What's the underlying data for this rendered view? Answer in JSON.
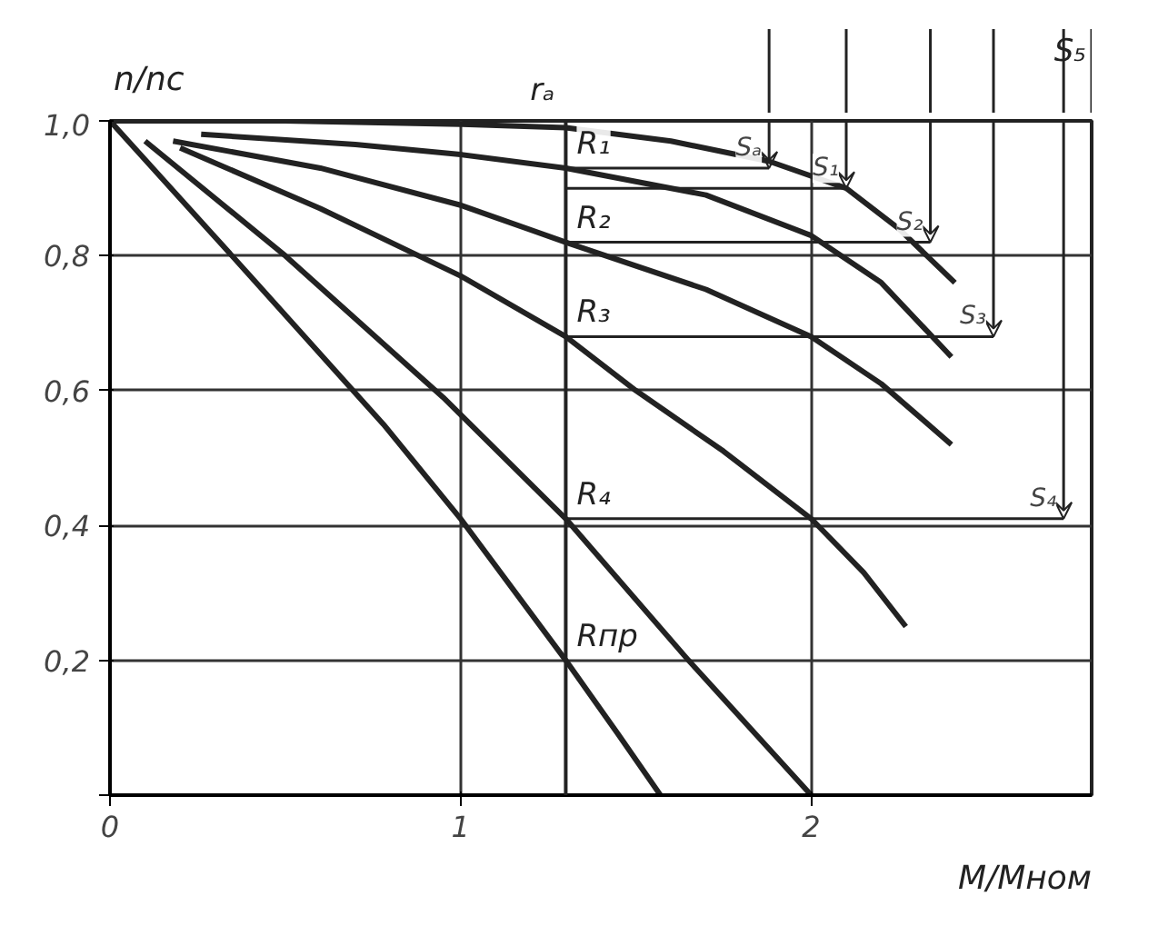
{
  "chart_data": {
    "type": "line",
    "xlabel": "M/Mном",
    "ylabel": "n/nc",
    "xlim": [
      0,
      2.8
    ],
    "ylim": [
      0,
      1.0
    ],
    "xticks": [
      {
        "value": 0,
        "label": "0"
      },
      1,
      2
    ],
    "yticks": [
      {
        "value": 0,
        "label": null
      },
      {
        "value": 0.2,
        "label": "0,2"
      },
      {
        "value": 0.4,
        "label": "0,4"
      },
      {
        "value": 0.6,
        "label": "0,6"
      },
      {
        "value": 0.8,
        "label": "0,8"
      },
      {
        "value": 1.0,
        "label": "1,0"
      }
    ],
    "grid": true,
    "marker": "none",
    "line_style": "solid",
    "series": [
      {
        "name": "rₐ",
        "color": "#222222",
        "x": [
          0,
          0.5,
          1.0,
          1.3,
          1.6,
          1.88,
          2.1,
          2.25,
          2.41
        ],
        "values": [
          1.0,
          1.0,
          0.995,
          0.99,
          0.97,
          0.94,
          0.9,
          0.84,
          0.76
        ]
      },
      {
        "name": "R₁",
        "color": "#222222",
        "x": [
          0.26,
          0.7,
          1.0,
          1.3,
          1.7,
          2.0,
          2.2,
          2.4
        ],
        "values": [
          0.98,
          0.965,
          0.95,
          0.93,
          0.89,
          0.83,
          0.76,
          0.65
        ]
      },
      {
        "name": "R₂",
        "color": "#222222",
        "x": [
          0.18,
          0.6,
          1.0,
          1.3,
          1.7,
          2.0,
          2.2,
          2.4
        ],
        "values": [
          0.97,
          0.93,
          0.875,
          0.82,
          0.75,
          0.68,
          0.61,
          0.52
        ]
      },
      {
        "name": "R₃",
        "color": "#222222",
        "x": [
          0.2,
          0.6,
          1.0,
          1.3,
          1.5,
          1.75,
          2.0,
          2.15,
          2.27
        ],
        "values": [
          0.96,
          0.87,
          0.77,
          0.68,
          0.6,
          0.51,
          0.41,
          0.33,
          0.25
        ]
      },
      {
        "name": "R₄",
        "color": "#222222",
        "x": [
          0.1,
          0.5,
          0.95,
          1.3,
          1.65,
          2.0
        ],
        "values": [
          0.97,
          0.8,
          0.59,
          0.41,
          0.2,
          0
        ]
      },
      {
        "name": "Rпр",
        "color": "#222222",
        "x": [
          0,
          0.4,
          0.78,
          1.0,
          1.3,
          1.45,
          1.57
        ],
        "values": [
          1.0,
          0.77,
          0.55,
          0.41,
          0.2,
          0.09,
          0
        ]
      },
      {
        "color": "#222222",
        "x": [
          1.3,
          1.88
        ],
        "values": [
          0.93,
          0.93
        ]
      },
      {
        "color": "#222222",
        "x": [
          1.3,
          2.1
        ],
        "values": [
          0.9,
          0.9
        ]
      },
      {
        "color": "#222222",
        "x": [
          1.3,
          2.34
        ],
        "values": [
          0.82,
          0.82
        ]
      },
      {
        "color": "#222222",
        "x": [
          1.3,
          2.52
        ],
        "values": [
          0.68,
          0.68
        ]
      },
      {
        "color": "#222222",
        "x": [
          1.3,
          2.72
        ],
        "values": [
          0.41,
          0.41
        ]
      }
    ],
    "ref_lines": [
      {
        "axis": "x",
        "value": 1.3,
        "color": "#222222"
      }
    ],
    "annotations": [
      {
        "text": "Sₐ",
        "x": 1.88,
        "y": 0.93
      },
      {
        "text": "S₁",
        "x": 2.1,
        "y": 0.9
      },
      {
        "text": "S₂",
        "x": 2.34,
        "y": 0.82
      },
      {
        "text": "S₃",
        "x": 2.52,
        "y": 0.68
      },
      {
        "text": "S₄",
        "x": 2.72,
        "y": 0.41
      },
      "S₅"
    ]
  }
}
